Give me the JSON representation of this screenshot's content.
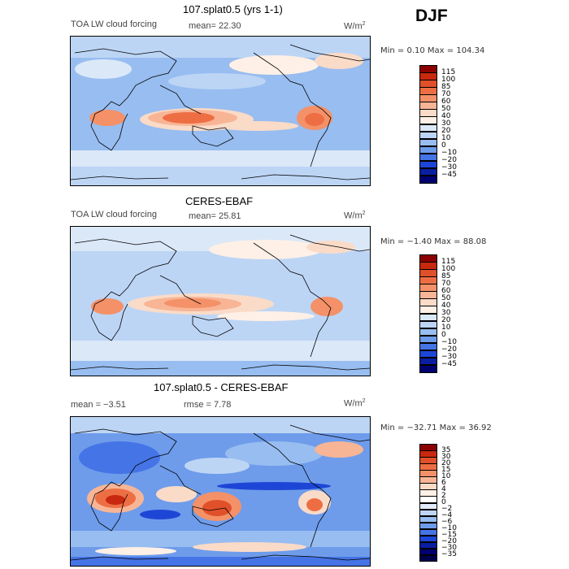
{
  "season": "DJF",
  "units": "W/m",
  "units_sup": "2",
  "panels": [
    {
      "id": "model",
      "title": "107.splat0.5 (yrs 1-1)",
      "left_label": "TOA LW cloud forcing",
      "mid_label": "mean=  22.30",
      "min_max": "Min =   0.10 Max = 104.34",
      "ticks": [
        "115",
        "100",
        "85",
        "70",
        "60",
        "50",
        "40",
        "30",
        "20",
        "10",
        "0",
        "−10",
        "−20",
        "−30",
        "−45"
      ],
      "colors": [
        "#8b0000",
        "#c8280e",
        "#e0502a",
        "#ee6e44",
        "#f49168",
        "#f8b596",
        "#fadbc8",
        "#fef0e6",
        "#dbe8f8",
        "#bdd5f5",
        "#98bdf0",
        "#6e9ceb",
        "#4574e6",
        "#1e46d6",
        "#0a1ea0",
        "#00006e"
      ]
    },
    {
      "id": "obs",
      "title": "CERES-EBAF",
      "left_label": "TOA LW cloud forcing",
      "mid_label": "mean=  25.81",
      "min_max": "Min =  −1.40 Max =  88.08",
      "ticks": [
        "115",
        "100",
        "85",
        "70",
        "60",
        "50",
        "40",
        "30",
        "20",
        "10",
        "0",
        "−10",
        "−20",
        "−30",
        "−45"
      ],
      "colors": [
        "#8b0000",
        "#c8280e",
        "#e0502a",
        "#ee6e44",
        "#f49168",
        "#f8b596",
        "#fadbc8",
        "#fef0e6",
        "#dbe8f8",
        "#bdd5f5",
        "#98bdf0",
        "#6e9ceb",
        "#4574e6",
        "#1e46d6",
        "#0a1ea0",
        "#00006e"
      ]
    },
    {
      "id": "diff",
      "title": "107.splat0.5 - CERES-EBAF",
      "left_label": "mean =   −3.51",
      "mid_label": "rmse =   7.78",
      "min_max": "Min = −32.71 Max =  36.92",
      "ticks": [
        "35",
        "30",
        "20",
        "15",
        "10",
        "6",
        "4",
        "2",
        "0",
        "−2",
        "−4",
        "−6",
        "−10",
        "−15",
        "−20",
        "−30",
        "−35"
      ],
      "colors": [
        "#8b0000",
        "#c8280e",
        "#e0502a",
        "#ee6e44",
        "#f49168",
        "#f8b596",
        "#fadbc8",
        "#fef0e6",
        "#ffffff",
        "#e2ecfa",
        "#bdd5f5",
        "#98bdf0",
        "#6e9ceb",
        "#4574e6",
        "#1e46d6",
        "#0a1ea0",
        "#00006e",
        "#00004a"
      ]
    }
  ]
}
